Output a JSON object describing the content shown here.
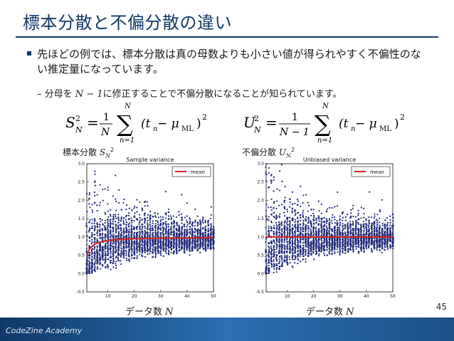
{
  "title": "標本分散と不偏分散の違い",
  "bullet": "先ほどの例では、標本分散は真の母数よりも小さい値が得られやすく不偏性のない推定量になっています。",
  "sub": {
    "dash": "–",
    "pre": "分母を ",
    "n": "N − 1",
    "post": "に修正することで不偏分散になることが知られています。"
  },
  "equations": {
    "left": {
      "lhs": "S",
      "sub": "N",
      "sup": "2",
      "frac_num": "1",
      "frac_den": "N",
      "sum_top": "N",
      "sum_bot": "n=1",
      "term": "(t",
      "term_sub": "n",
      "minus": " − μ",
      "mu_sub": "ML",
      "close": ")",
      "pow": "2"
    },
    "right": {
      "lhs": "U",
      "sub": "N",
      "sup": "2",
      "frac_num": "1",
      "frac_den": "N − 1",
      "sum_top": "N",
      "sum_bot": "n=1",
      "term": "(t",
      "term_sub": "n",
      "minus": " − μ",
      "mu_sub": "ML",
      "close": ")",
      "pow": "2"
    }
  },
  "left_label": {
    "text": "標本分散 ",
    "var": "S",
    "sub": "N",
    "sup": "2"
  },
  "right_label": {
    "text": "不偏分散 ",
    "var": "U",
    "sub": "N",
    "sup": "2"
  },
  "left_xlabel": {
    "text": "データ数 ",
    "var": "N"
  },
  "right_xlabel": {
    "text": "データ数 ",
    "var": "N"
  },
  "page_number": "45",
  "footer": "CodeZine Academy",
  "chart_data": [
    {
      "type": "scatter",
      "title": "Sample variance",
      "x": {
        "range": [
          2,
          50
        ],
        "ticks": [
          10,
          20,
          30,
          40,
          50
        ]
      },
      "ylim": [
        -0.5,
        3.0
      ],
      "yticks": [
        "-0.5",
        "0.0",
        "0.5",
        "1.0",
        "1.5",
        "2.0",
        "2.5",
        "3.0"
      ],
      "legend": {
        "label": "mean",
        "position": "top-right"
      },
      "points_color": "#1f2a78",
      "mean_color": "#d62020",
      "mean_curve": "(N-1)/N",
      "mean_at": {
        "2": 0.5,
        "5": 0.8,
        "10": 0.9,
        "20": 0.95,
        "50": 0.98
      }
    },
    {
      "type": "scatter",
      "title": "Unbiased variance",
      "x": {
        "range": [
          2,
          50
        ],
        "ticks": [
          10,
          20,
          30,
          40,
          50
        ]
      },
      "ylim": [
        -0.5,
        3.0
      ],
      "yticks": [
        "-0.5",
        "0.0",
        "0.5",
        "1.0",
        "1.5",
        "2.0",
        "2.5",
        "3.0"
      ],
      "legend": {
        "label": "mean",
        "position": "top-right"
      },
      "points_color": "#1f2a78",
      "mean_color": "#d62020",
      "mean_curve": "1",
      "mean_at": {
        "2": 1.0,
        "50": 1.0
      }
    }
  ]
}
